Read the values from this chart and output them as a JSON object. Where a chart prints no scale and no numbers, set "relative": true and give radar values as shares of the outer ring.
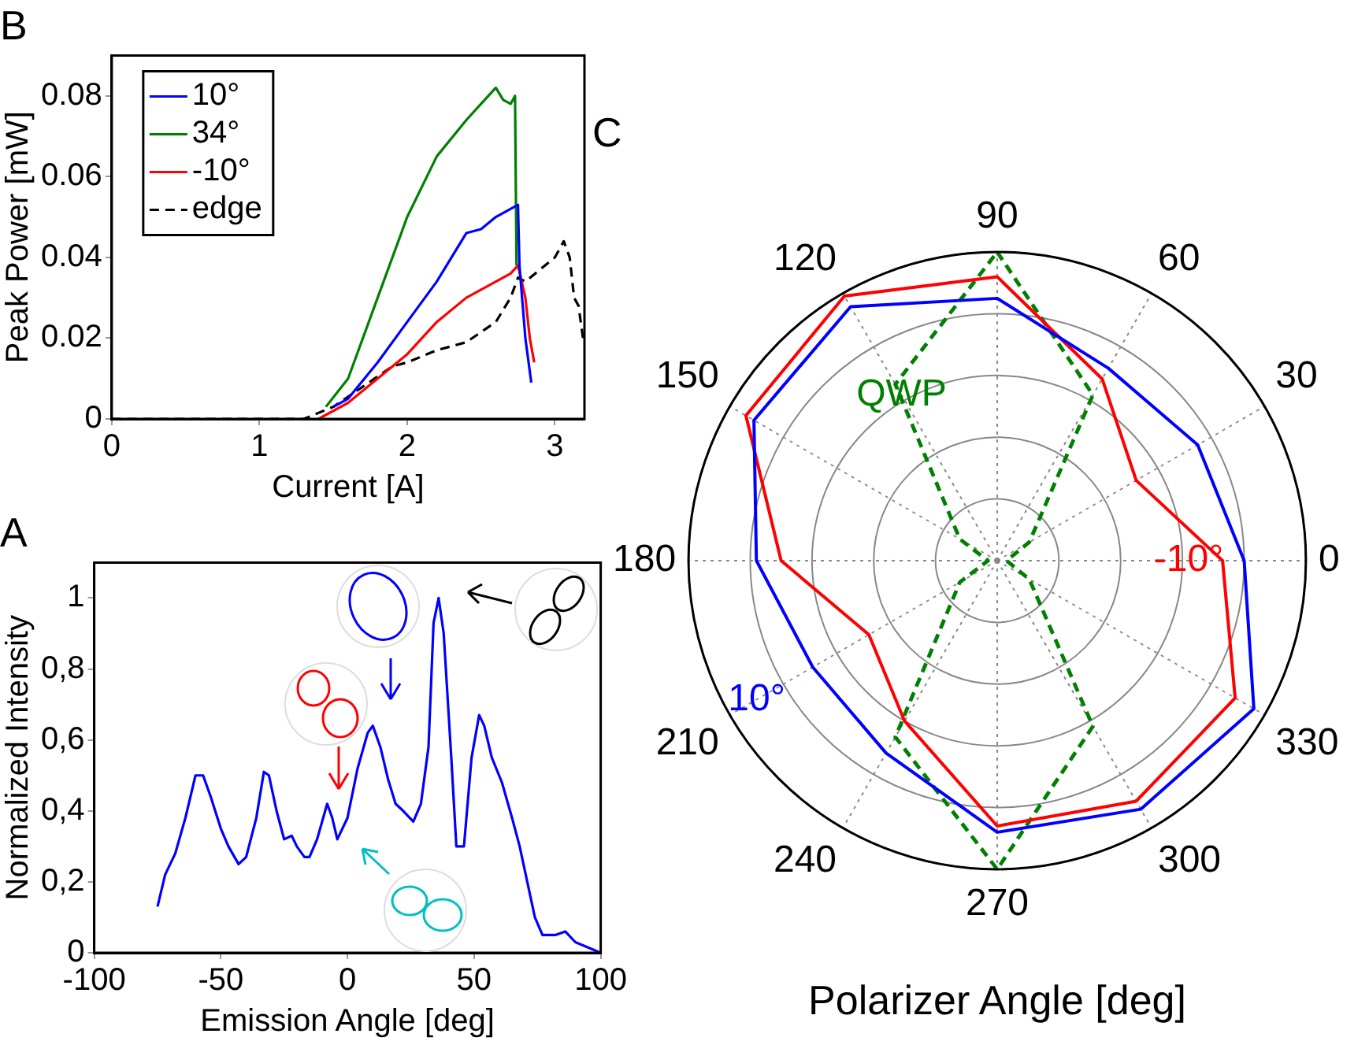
{
  "chart_data": [
    {
      "type": "line",
      "title": "B",
      "xlabel": "Current [A]",
      "ylabel": "Peak Power [mW]",
      "xlim": [
        0,
        3.2
      ],
      "xticks": [
        0,
        1,
        2,
        3
      ],
      "ylim": [
        0,
        0.09
      ],
      "yticks": [
        0,
        0.02,
        0.04,
        0.06,
        0.08
      ],
      "grid": false,
      "legend": "top left",
      "marker": "none",
      "series": [
        {
          "name": "10°",
          "color": "#0000ff",
          "x": [
            1.5,
            1.6,
            1.8,
            2.0,
            2.2,
            2.4,
            2.5,
            2.6,
            2.75,
            2.76,
            2.8,
            2.84
          ],
          "values": [
            0.003,
            0.005,
            0.014,
            0.024,
            0.034,
            0.046,
            0.047,
            0.05,
            0.053,
            0.038,
            0.02,
            0.009
          ]
        },
        {
          "name": "34°",
          "color": "#008000",
          "x": [
            1.45,
            1.6,
            1.8,
            2.0,
            2.2,
            2.4,
            2.5,
            2.6,
            2.65,
            2.7,
            2.73,
            2.74
          ],
          "values": [
            0.003,
            0.01,
            0.03,
            0.05,
            0.065,
            0.074,
            0.078,
            0.082,
            0.079,
            0.078,
            0.08,
            0.038
          ]
        },
        {
          "name": "-10°",
          "color": "#ff0000",
          "x": [
            1.4,
            1.6,
            1.8,
            2.0,
            2.2,
            2.4,
            2.6,
            2.7,
            2.75,
            2.8,
            2.83,
            2.86
          ],
          "values": [
            0,
            0.004,
            0.01,
            0.016,
            0.024,
            0.03,
            0.034,
            0.036,
            0.038,
            0.03,
            0.02,
            0.014
          ]
        },
        {
          "name": "edge",
          "color": "#000000",
          "line_style": "dashed",
          "x": [
            0,
            1.3,
            1.5,
            1.7,
            1.9,
            2.0,
            2.2,
            2.4,
            2.6,
            2.7,
            2.75,
            2.8,
            2.9,
            3.0,
            3.06,
            3.1,
            3.13,
            3.16,
            3.19
          ],
          "values": [
            0,
            0,
            0.003,
            0.008,
            0.013,
            0.014,
            0.017,
            0.019,
            0.024,
            0.03,
            0.035,
            0.034,
            0.037,
            0.04,
            0.044,
            0.04,
            0.03,
            0.028,
            0.02
          ]
        }
      ]
    },
    {
      "type": "radar",
      "title": "C",
      "xlabel": "Polarizer Angle [deg]",
      "relative": true,
      "grid": true,
      "marker": "none",
      "categories": [
        "90",
        "60",
        "30",
        "0",
        "330",
        "300",
        "270",
        "240",
        "210",
        "180",
        "150",
        "120"
      ],
      "series": [
        {
          "name": "10°",
          "color": "#0000ff",
          "values": [
            0.85,
            0.72,
            0.75,
            0.8,
            0.96,
            0.93,
            0.88,
            0.72,
            0.69,
            0.78,
            0.91,
            0.95
          ]
        },
        {
          "name": "-10°",
          "color": "#ff0000",
          "values": [
            0.92,
            0.68,
            0.52,
            0.73,
            0.89,
            0.9,
            0.86,
            0.6,
            0.48,
            0.7,
            0.94,
            0.99
          ]
        },
        {
          "name": "QWP",
          "color": "#008000",
          "line_style": "dashed",
          "values": [
            1.0,
            0.62,
            0.12,
            0.03,
            0.12,
            0.62,
            1.0,
            0.66,
            0.14,
            0.03,
            0.14,
            0.66
          ]
        }
      ]
    },
    {
      "type": "line",
      "title": "A",
      "xlabel": "Emission Angle [deg]",
      "ylabel": "Normalized Intensity",
      "xlim": [
        -100,
        100
      ],
      "xticks": [
        -100,
        -50,
        0,
        50,
        100
      ],
      "ylim": [
        0,
        1.1
      ],
      "yticks": [
        0,
        {
          "value": 0.2,
          "label": "0,2"
        },
        {
          "value": 0.4,
          "label": "0,4"
        },
        {
          "value": 0.6,
          "label": "0,6"
        },
        {
          "value": 0.8,
          "label": "0,8"
        },
        1
      ],
      "grid": false,
      "marker": "none",
      "color": "#0000ff",
      "x": [
        -75,
        -72,
        -68,
        -64,
        -60,
        -57,
        -54,
        -50,
        -47,
        -43,
        -40,
        -36,
        -33,
        -31,
        -28,
        -25,
        -22,
        -20,
        -17,
        -15,
        -12,
        -8,
        -6,
        -4,
        0,
        4,
        8,
        10,
        13,
        16,
        19,
        22,
        26,
        29,
        32,
        34,
        36,
        38,
        41,
        43,
        46,
        49,
        52,
        54,
        57,
        61,
        65,
        68,
        71,
        74,
        77,
        82,
        86,
        90,
        95,
        100
      ],
      "values": [
        0.13,
        0.22,
        0.28,
        0.38,
        0.5,
        0.5,
        0.44,
        0.35,
        0.3,
        0.25,
        0.27,
        0.38,
        0.51,
        0.5,
        0.4,
        0.32,
        0.33,
        0.3,
        0.27,
        0.27,
        0.32,
        0.42,
        0.38,
        0.32,
        0.38,
        0.52,
        0.62,
        0.64,
        0.58,
        0.49,
        0.42,
        0.4,
        0.37,
        0.42,
        0.58,
        0.93,
        1.0,
        0.9,
        0.55,
        0.3,
        0.3,
        0.55,
        0.67,
        0.64,
        0.55,
        0.48,
        0.38,
        0.3,
        0.2,
        0.1,
        0.05,
        0.05,
        0.06,
        0.03,
        0.015,
        0
      ]
    }
  ]
}
